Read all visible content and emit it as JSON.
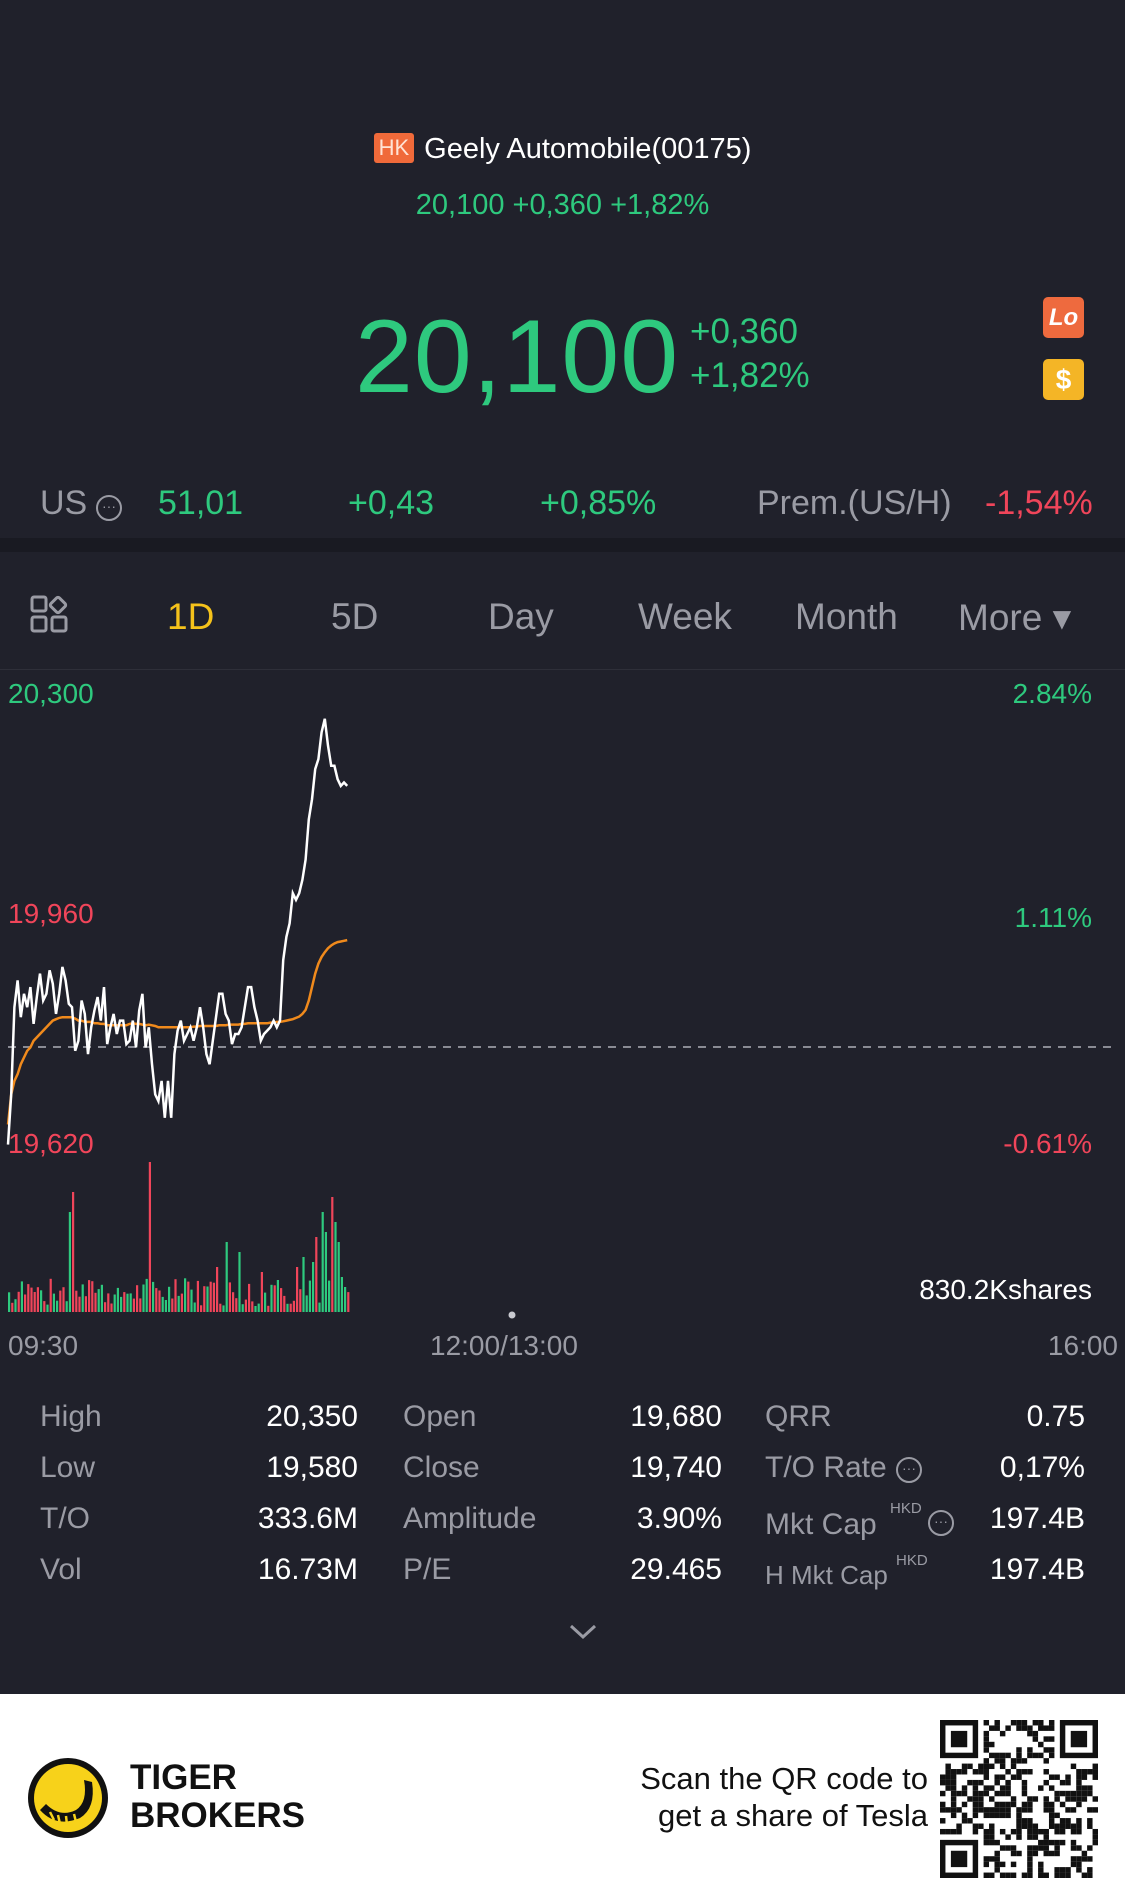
{
  "header": {
    "market_badge": "HK",
    "title": "Geely Automobile(00175)",
    "sub_quote": "20,100 +0,360 +1,82%",
    "price": "20,100",
    "change": "+0,360",
    "change_pct": "+1,82%",
    "lo_badge": "Lo",
    "dollar_badge": "$"
  },
  "us_row": {
    "label": "US",
    "price": "51,01",
    "change": "+0,43",
    "change_pct": "+0,85%",
    "prem_label": "Prem.(US/H)",
    "prem_value": "-1,54%"
  },
  "tabs": [
    "1D",
    "5D",
    "Day",
    "Week",
    "Month",
    "More ▾"
  ],
  "active_tab": "1D",
  "chart_data": {
    "type": "line",
    "y_labels_left": [
      "20,300",
      "19,960",
      "19,620"
    ],
    "y_labels_right": [
      "2.84%",
      "1.11%",
      "-0.61%"
    ],
    "x_labels": [
      "09:30",
      "12:00/13:00",
      "16:00"
    ],
    "ylim": [
      19620,
      20300
    ],
    "prev_close": 19740,
    "volume_label": "830.2Kshares",
    "series": [
      {
        "color": "#ffffff",
        "values": [
          19625,
          19700,
          19830,
          19870,
          19815,
          19850,
          19830,
          19860,
          19805,
          19845,
          19880,
          19840,
          19850,
          19885,
          19865,
          19820,
          19850,
          19890,
          19870,
          19835,
          19830,
          19765,
          19780,
          19840,
          19820,
          19760,
          19800,
          19825,
          19845,
          19810,
          19860,
          19775,
          19800,
          19820,
          19790,
          19810,
          19810,
          19775,
          19780,
          19810,
          19770,
          19825,
          19850,
          19770,
          19800,
          19745,
          19700,
          19690,
          19720,
          19665,
          19720,
          19665,
          19760,
          19795,
          19810,
          19780,
          19790,
          19800,
          19780,
          19800,
          19830,
          19800,
          19760,
          19745,
          19780,
          19815,
          19850,
          19850,
          19820,
          19810,
          19775,
          19790,
          19790,
          19800,
          19830,
          19860,
          19860,
          19830,
          19810,
          19780,
          19790,
          19795,
          19800,
          19810,
          19800,
          19810,
          19900,
          19935,
          19955,
          20000,
          19990,
          20000,
          20020,
          20050,
          20110,
          20140,
          20185,
          20200,
          20240,
          20260,
          20220,
          20190,
          20190,
          20170,
          20160,
          20165,
          20160
        ]
      },
      {
        "color": "#f08a1c",
        "values": [
          19655,
          19700,
          19720,
          19730,
          19745,
          19755,
          19765,
          19770,
          19780,
          19785,
          19790,
          19795,
          19800,
          19805,
          19810,
          19812,
          19814,
          19815,
          19815,
          19815,
          19815,
          19813,
          19810,
          19810,
          19808,
          19808,
          19808,
          19806,
          19806,
          19805,
          19805,
          19803,
          19803,
          19803,
          19803,
          19803,
          19803,
          19803,
          19805,
          19806,
          19805,
          19805,
          19804,
          19803,
          19804,
          19803,
          19802,
          19800,
          19800,
          19800,
          19800,
          19800,
          19800,
          19800,
          19800,
          19800,
          19800,
          19800,
          19801,
          19801,
          19802,
          19802,
          19802,
          19802,
          19802,
          19802,
          19803,
          19803,
          19803,
          19804,
          19804,
          19804,
          19804,
          19805,
          19805,
          19806,
          19806,
          19806,
          19806,
          19806,
          19806,
          19806,
          19807,
          19807,
          19808,
          19808,
          19809,
          19810,
          19811,
          19812,
          19814,
          19816,
          19820,
          19826,
          19840,
          19860,
          19880,
          19895,
          19905,
          19912,
          19918,
          19922,
          19925,
          19927,
          19928,
          19929,
          19930
        ]
      }
    ],
    "volume_color_pattern": "mixed green/red bars"
  },
  "stats": {
    "rows": [
      [
        {
          "label": "High",
          "value": "20,350"
        },
        {
          "label": "Open",
          "value": "19,680"
        },
        {
          "label": "QRR",
          "value": "0.75"
        }
      ],
      [
        {
          "label": "Low",
          "value": "19,580"
        },
        {
          "label": "Close",
          "value": "19,740"
        },
        {
          "label": "T/O Rate",
          "value": "0,17%"
        }
      ],
      [
        {
          "label": "T/O",
          "value": "333.6M"
        },
        {
          "label": "Amplitude",
          "value": "3.90%"
        },
        {
          "label": "Mkt Cap",
          "value": "197.4B"
        }
      ],
      [
        {
          "label": "Vol",
          "value": "16.73M"
        },
        {
          "label": "P/E",
          "value": "29.465"
        },
        {
          "label": "H Mkt Cap",
          "value": "197.4B"
        }
      ]
    ],
    "currency_tag": "HKD"
  },
  "footer": {
    "brand_line1": "TIGER",
    "brand_line2": "BROKERS",
    "scan_line1": "Scan the QR code to",
    "scan_line2": "get a share of Tesla"
  }
}
